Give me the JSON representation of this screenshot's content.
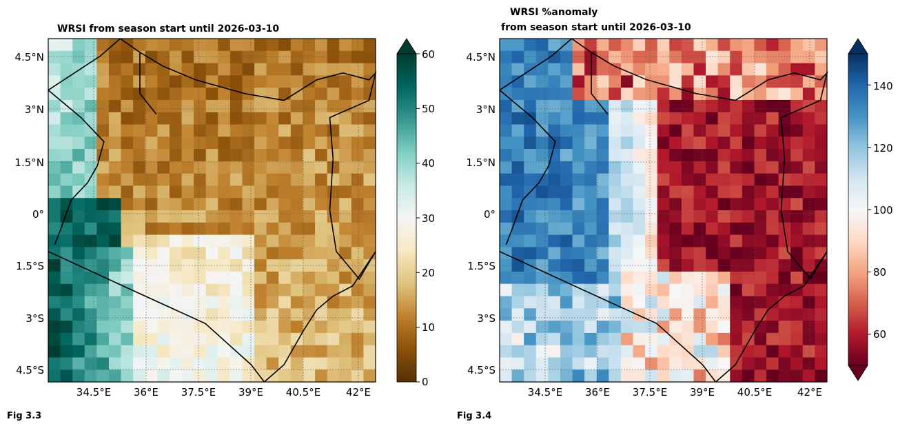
{
  "maps": [
    {
      "id": "wrsi",
      "title_lines": [
        "WRSI from season start until 2026-03-10"
      ],
      "figure_label": "Fig 3.3",
      "lat_labels": [
        "4.5°N",
        "3°N",
        "1.5°N",
        "0°",
        "1.5°S",
        "3°S",
        "4.5°S"
      ],
      "lon_labels": [
        "34.5°E",
        "36°E",
        "37.5°E",
        "39°E",
        "40.5°E",
        "42°E"
      ],
      "colorbar": {
        "ticks": [
          "60",
          "50",
          "40",
          "30",
          "20",
          "10",
          "0"
        ],
        "min": 0,
        "max": 60,
        "extend": "max",
        "colors": [
          "#543005",
          "#8c510a",
          "#bf812d",
          "#dfc27d",
          "#f6e8c3",
          "#f5f5f5",
          "#c7eae5",
          "#80cdc1",
          "#35978f",
          "#01665e",
          "#003c30"
        ]
      }
    },
    {
      "id": "wrsi-anomaly",
      "title_lines": [
        "WRSI %anomaly",
        "from season start until 2026-03-10"
      ],
      "figure_label": "Fig 3.4",
      "lat_labels": [
        "4.5°N",
        "3°N",
        "1.5°N",
        "0°",
        "1.5°S",
        "3°S",
        "4.5°S"
      ],
      "lon_labels": [
        "34.5°E",
        "36°E",
        "37.5°E",
        "39°E",
        "40.5°E",
        "42°E"
      ],
      "colorbar": {
        "ticks": [
          "140",
          "120",
          "100",
          "80",
          "60"
        ],
        "min": 50,
        "max": 150,
        "extend": "both",
        "colors": [
          "#67001f",
          "#b2182b",
          "#d6604d",
          "#f4a582",
          "#fddbc7",
          "#f7f7f7",
          "#d1e5f0",
          "#92c5de",
          "#4393c3",
          "#2166ac",
          "#053061"
        ]
      }
    }
  ]
}
